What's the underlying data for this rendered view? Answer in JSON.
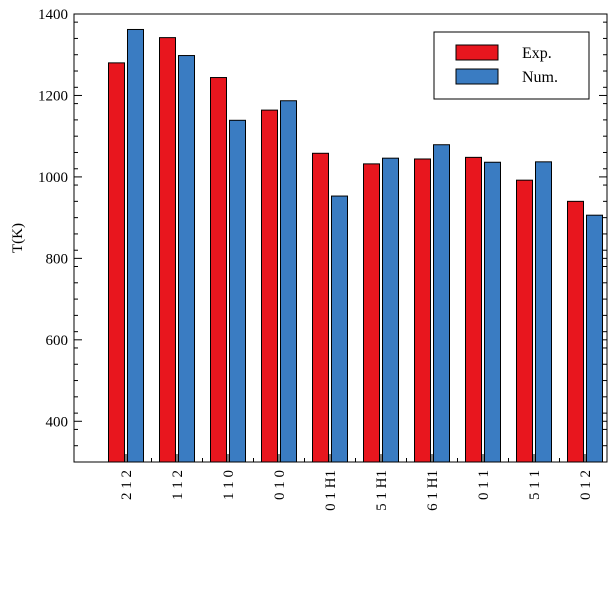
{
  "chart_data": {
    "type": "bar",
    "title": "",
    "xlabel": "",
    "ylabel": "T(K)",
    "ylim": [
      300,
      1400
    ],
    "yticks": [
      400,
      600,
      800,
      1000,
      1200,
      1400
    ],
    "grid": false,
    "legend_position": "top-right",
    "categories": [
      "2 1 2",
      "1 1 2",
      "1 1 0",
      "0 1 0",
      "0 1 H1",
      "5 1 H1",
      "6 1 H1",
      "0 1 1",
      "5 1 1",
      "0 1 2"
    ],
    "series": [
      {
        "name": "Exp.",
        "color": "#e8161e",
        "values": [
          1280,
          1342,
          1244,
          1164,
          1058,
          1032,
          1044,
          1048,
          992,
          940
        ]
      },
      {
        "name": "Num.",
        "color": "#3a7cc2",
        "values": [
          1362,
          1298,
          1139,
          1187,
          953,
          1046,
          1079,
          1036,
          1037,
          906
        ]
      }
    ]
  }
}
